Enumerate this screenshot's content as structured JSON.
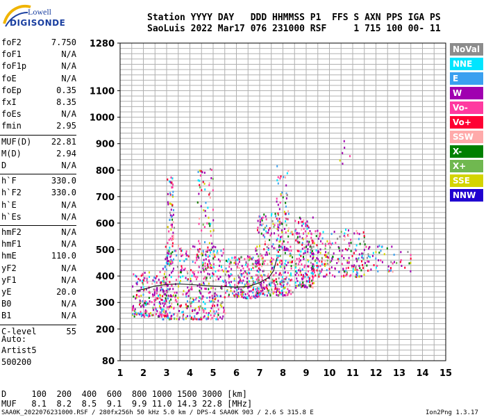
{
  "logo": {
    "line1": "Lowell",
    "line2": "DIGISONDE"
  },
  "header": {
    "line1": "Station YYYY DAY   DDD HHMMSS P1  FFS S AXN PPS IGA PS",
    "line2": "SaoLuis 2022 Mar17 076 231000 RSF     1 715 100 00- 11"
  },
  "params": [
    {
      "label": "foF2",
      "value": "7.750"
    },
    {
      "label": "foF1",
      "value": "N/A"
    },
    {
      "label": "foF1p",
      "value": "N/A"
    },
    {
      "label": "foE",
      "value": "N/A"
    },
    {
      "label": "foEp",
      "value": "0.35"
    },
    {
      "label": "fxI",
      "value": "8.35"
    },
    {
      "label": "foEs",
      "value": "N/A"
    },
    {
      "label": "fmin",
      "value": "2.95"
    },
    {
      "label": "MUF(D)",
      "value": "22.81"
    },
    {
      "label": "M(D)",
      "value": "2.94"
    },
    {
      "label": "D",
      "value": "N/A"
    },
    {
      "label": "h`F",
      "value": "330.0"
    },
    {
      "label": "h`F2",
      "value": "330.0"
    },
    {
      "label": "h`E",
      "value": "N/A"
    },
    {
      "label": "h`Es",
      "value": "N/A"
    },
    {
      "label": "hmF2",
      "value": "N/A"
    },
    {
      "label": "hmF1",
      "value": "N/A"
    },
    {
      "label": "hmE",
      "value": "110.0"
    },
    {
      "label": "yF2",
      "value": "N/A"
    },
    {
      "label": "yF1",
      "value": "N/A"
    },
    {
      "label": "yE",
      "value": "20.0"
    },
    {
      "label": "B0",
      "value": "N/A"
    },
    {
      "label": "B1",
      "value": "N/A"
    },
    {
      "label": "C-level",
      "value": "55"
    }
  ],
  "autoscale": {
    "line1": "Auto:",
    "line2": "Artist5",
    "line3": "500200"
  },
  "legend": [
    {
      "label": "NoVal",
      "color": "#8c8c8c"
    },
    {
      "label": "NNE",
      "color": "#00e5ff"
    },
    {
      "label": "E",
      "color": "#3aa0f0"
    },
    {
      "label": "W",
      "color": "#a000b0"
    },
    {
      "label": "Vo-",
      "color": "#ff3aa0"
    },
    {
      "label": "Vo+",
      "color": "#ff0033"
    },
    {
      "label": "SSW",
      "color": "#ffaaaa"
    },
    {
      "label": "X-",
      "color": "#008000"
    },
    {
      "label": "X+",
      "color": "#70b850"
    },
    {
      "label": "SSE",
      "color": "#d4d400"
    },
    {
      "label": "NNW",
      "color": "#2000d0"
    }
  ],
  "bottom": {
    "dist_line": "D     100  200  400  600  800 1000 1500 3000 [km]",
    "muf_line": "MUF   8.1  8.2  8.5  9.1  9.9 11.0 14.3 22.8 [MHz]"
  },
  "footer": {
    "left": "SAA0K_2022076231000.RSF / 280fx256h 50 kHz 5.0 km / DPS-4 SAA0K 903 / 2.6 S 315.8 E",
    "right": "Ion2Png 1.3.17"
  },
  "chart_data": {
    "type": "scatter",
    "title": "",
    "xlabel": "",
    "ylabel": "",
    "xlim": [
      1,
      15
    ],
    "ylim": [
      80,
      1280
    ],
    "x_ticks": [
      1,
      2,
      3,
      4,
      5,
      6,
      7,
      8,
      9,
      10,
      11,
      12,
      13,
      14,
      15
    ],
    "y_ticks": [
      80,
      200,
      300,
      400,
      500,
      600,
      700,
      800,
      900,
      1000,
      1100,
      1280
    ],
    "grid": true,
    "trace": {
      "name": "",
      "x": [
        1.7,
        2.0,
        2.5,
        3.0,
        3.5,
        4.0,
        4.5,
        5.0,
        5.5,
        6.0,
        6.5,
        7.0,
        7.4,
        7.6,
        7.75
      ],
      "y": [
        345,
        350,
        362,
        368,
        370,
        368,
        365,
        362,
        360,
        358,
        360,
        375,
        395,
        420,
        470
      ]
    },
    "clusters": [
      {
        "xmin": 1.5,
        "xmax": 3.0,
        "ymin": 250,
        "ymax": 420,
        "n": 220
      },
      {
        "xmin": 2.8,
        "xmax": 5.5,
        "ymin": 240,
        "ymax": 520,
        "n": 420
      },
      {
        "xmin": 3.0,
        "xmax": 3.3,
        "ymin": 450,
        "ymax": 780,
        "n": 80
      },
      {
        "xmin": 4.3,
        "xmax": 5.0,
        "ymin": 430,
        "ymax": 820,
        "n": 90
      },
      {
        "xmin": 5.5,
        "xmax": 7.0,
        "ymin": 320,
        "ymax": 480,
        "n": 220
      },
      {
        "xmin": 6.8,
        "xmax": 8.4,
        "ymin": 330,
        "ymax": 640,
        "n": 320
      },
      {
        "xmin": 7.7,
        "xmax": 8.2,
        "ymin": 500,
        "ymax": 830,
        "n": 60
      },
      {
        "xmin": 8.5,
        "xmax": 9.3,
        "ymin": 360,
        "ymax": 630,
        "n": 180
      },
      {
        "xmin": 9.2,
        "xmax": 11.5,
        "ymin": 400,
        "ymax": 580,
        "n": 220
      },
      {
        "xmin": 11.5,
        "xmax": 13.5,
        "ymin": 420,
        "ymax": 520,
        "n": 60
      },
      {
        "xmin": 10.2,
        "xmax": 10.9,
        "ymin": 820,
        "ymax": 920,
        "n": 6
      }
    ]
  }
}
